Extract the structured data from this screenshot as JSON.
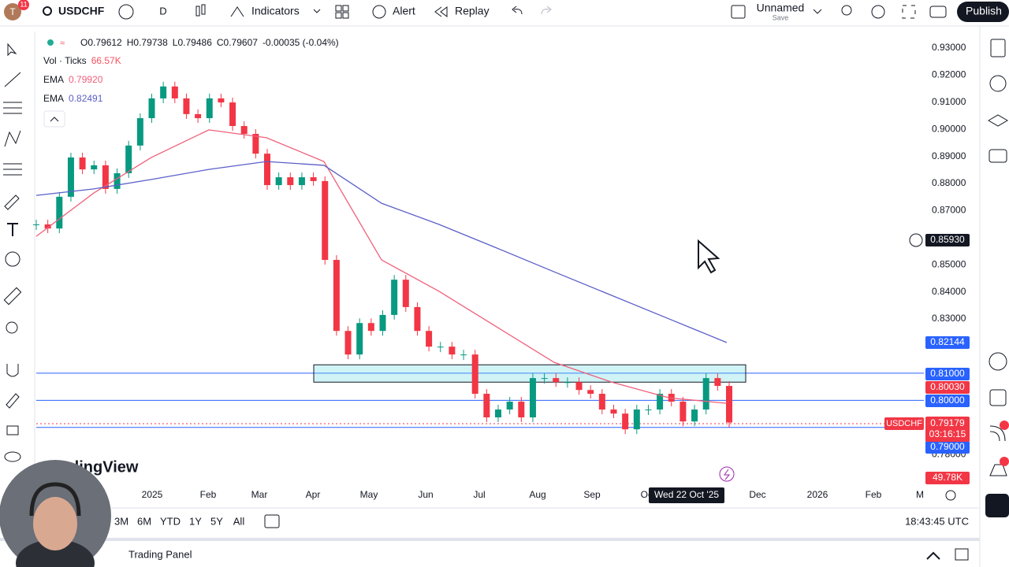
{
  "toolbar": {
    "avatar": "T",
    "badge": "11",
    "symbol": "USDCHF",
    "interval": "D",
    "indicators": "Indicators",
    "alert": "Alert",
    "replay": "Replay",
    "layout_name": "Unnamed",
    "save": "Save",
    "publish": "Publish"
  },
  "legend": [
    {
      "k": "O",
      "v": "0.79612"
    },
    {
      "k": "H",
      "v": "0.79738"
    },
    {
      "k": "L",
      "v": "0.79486"
    },
    {
      "k": "C",
      "v": "0.79607"
    }
  ],
  "legend_change": "-0.00035 (-0.04%)",
  "indicators": [
    {
      "name": "Vol · Ticks",
      "value": "66.57K"
    },
    {
      "name": "EMA",
      "value": "0.79920"
    },
    {
      "name": "EMA",
      "value": "0.82491"
    }
  ],
  "chart_data": {
    "type": "candlestick",
    "closes": [
      0.8649,
      0.8634,
      0.8751,
      0.8896,
      0.8852,
      0.8867,
      0.878,
      0.8838,
      0.894,
      0.9041,
      0.9114,
      0.9158,
      0.9114,
      0.9056,
      0.9041,
      0.9114,
      0.9099,
      0.9012,
      0.8983,
      0.891,
      0.8794,
      0.8823,
      0.8794,
      0.8823,
      0.8809,
      0.8518,
      0.8256,
      0.8169,
      0.8285,
      0.8256,
      0.8315,
      0.8445,
      0.8344,
      0.8256,
      0.8198,
      0.8198,
      0.8169,
      0.8169,
      0.8024,
      0.7937,
      0.7966,
      0.7995,
      0.7937,
      0.8082,
      0.8082,
      0.8067,
      0.8067,
      0.8038,
      0.8024,
      0.7966,
      0.7951,
      0.7893,
      0.7966,
      0.7966,
      0.8024,
      0.7995,
      0.7922,
      0.7966,
      0.8082,
      0.8053,
      0.7918
    ],
    "ema_fast": {
      "color": "#ef5f7a",
      "values": [
        0.8605,
        0.8765,
        0.8896,
        0.8998,
        0.8969,
        0.8881,
        0.8518,
        0.8402,
        0.8271,
        0.814,
        0.8067,
        0.8009,
        0.7989
      ]
    },
    "ema_slow": {
      "color": "#5b5fc7",
      "values": [
        0.8756,
        0.878,
        0.8815,
        0.8852,
        0.8881,
        0.8867,
        0.8727,
        0.8649,
        0.8562,
        0.8474,
        0.8387,
        0.83,
        0.8213
      ]
    },
    "up_color": "#089981",
    "down_color": "#f23645",
    "zone": [
      0.8067,
      0.8131
    ],
    "hlines": [
      0.81,
      0.8,
      0.79
    ],
    "ylim": [
      0.769,
      0.9355
    ],
    "yticks": [
      {
        "value": 0.93,
        "label": "0.93000"
      },
      {
        "value": 0.92,
        "label": "0.92000"
      },
      {
        "value": 0.91,
        "label": "0.91000"
      },
      {
        "value": 0.9,
        "label": "0.90000"
      },
      {
        "value": 0.89,
        "label": "0.89000"
      },
      {
        "value": 0.88,
        "label": "0.88000"
      },
      {
        "value": 0.87,
        "label": "0.87000"
      },
      {
        "value": 0.85,
        "label": "0.85000"
      },
      {
        "value": 0.84,
        "label": "0.84000"
      },
      {
        "value": 0.83,
        "label": "0.83000"
      },
      {
        "value": 0.78,
        "label": "0.78000"
      }
    ],
    "xlabels": [
      "2025",
      "Feb",
      "Mar",
      "Apr",
      "May",
      "Jun",
      "Jul",
      "Aug",
      "Sep",
      "Oct",
      "Dec",
      "2026",
      "Feb",
      "M"
    ],
    "crosshair_date": "Wed 22 Oct '25",
    "price_tags": [
      "0.85930",
      "0.82144",
      "0.81000",
      "0.80030",
      "0.80000",
      "0.79000",
      "49.78K"
    ],
    "last_price": {
      "symbol": "USDCHF",
      "price": "0.79179",
      "countdown": "03:16:15"
    }
  },
  "watermark": "TradingView",
  "ranges": [
    "3M",
    "6M",
    "YTD",
    "1Y",
    "5Y",
    "All"
  ],
  "clock": "18:43:45 UTC",
  "panel": "Trading Panel"
}
